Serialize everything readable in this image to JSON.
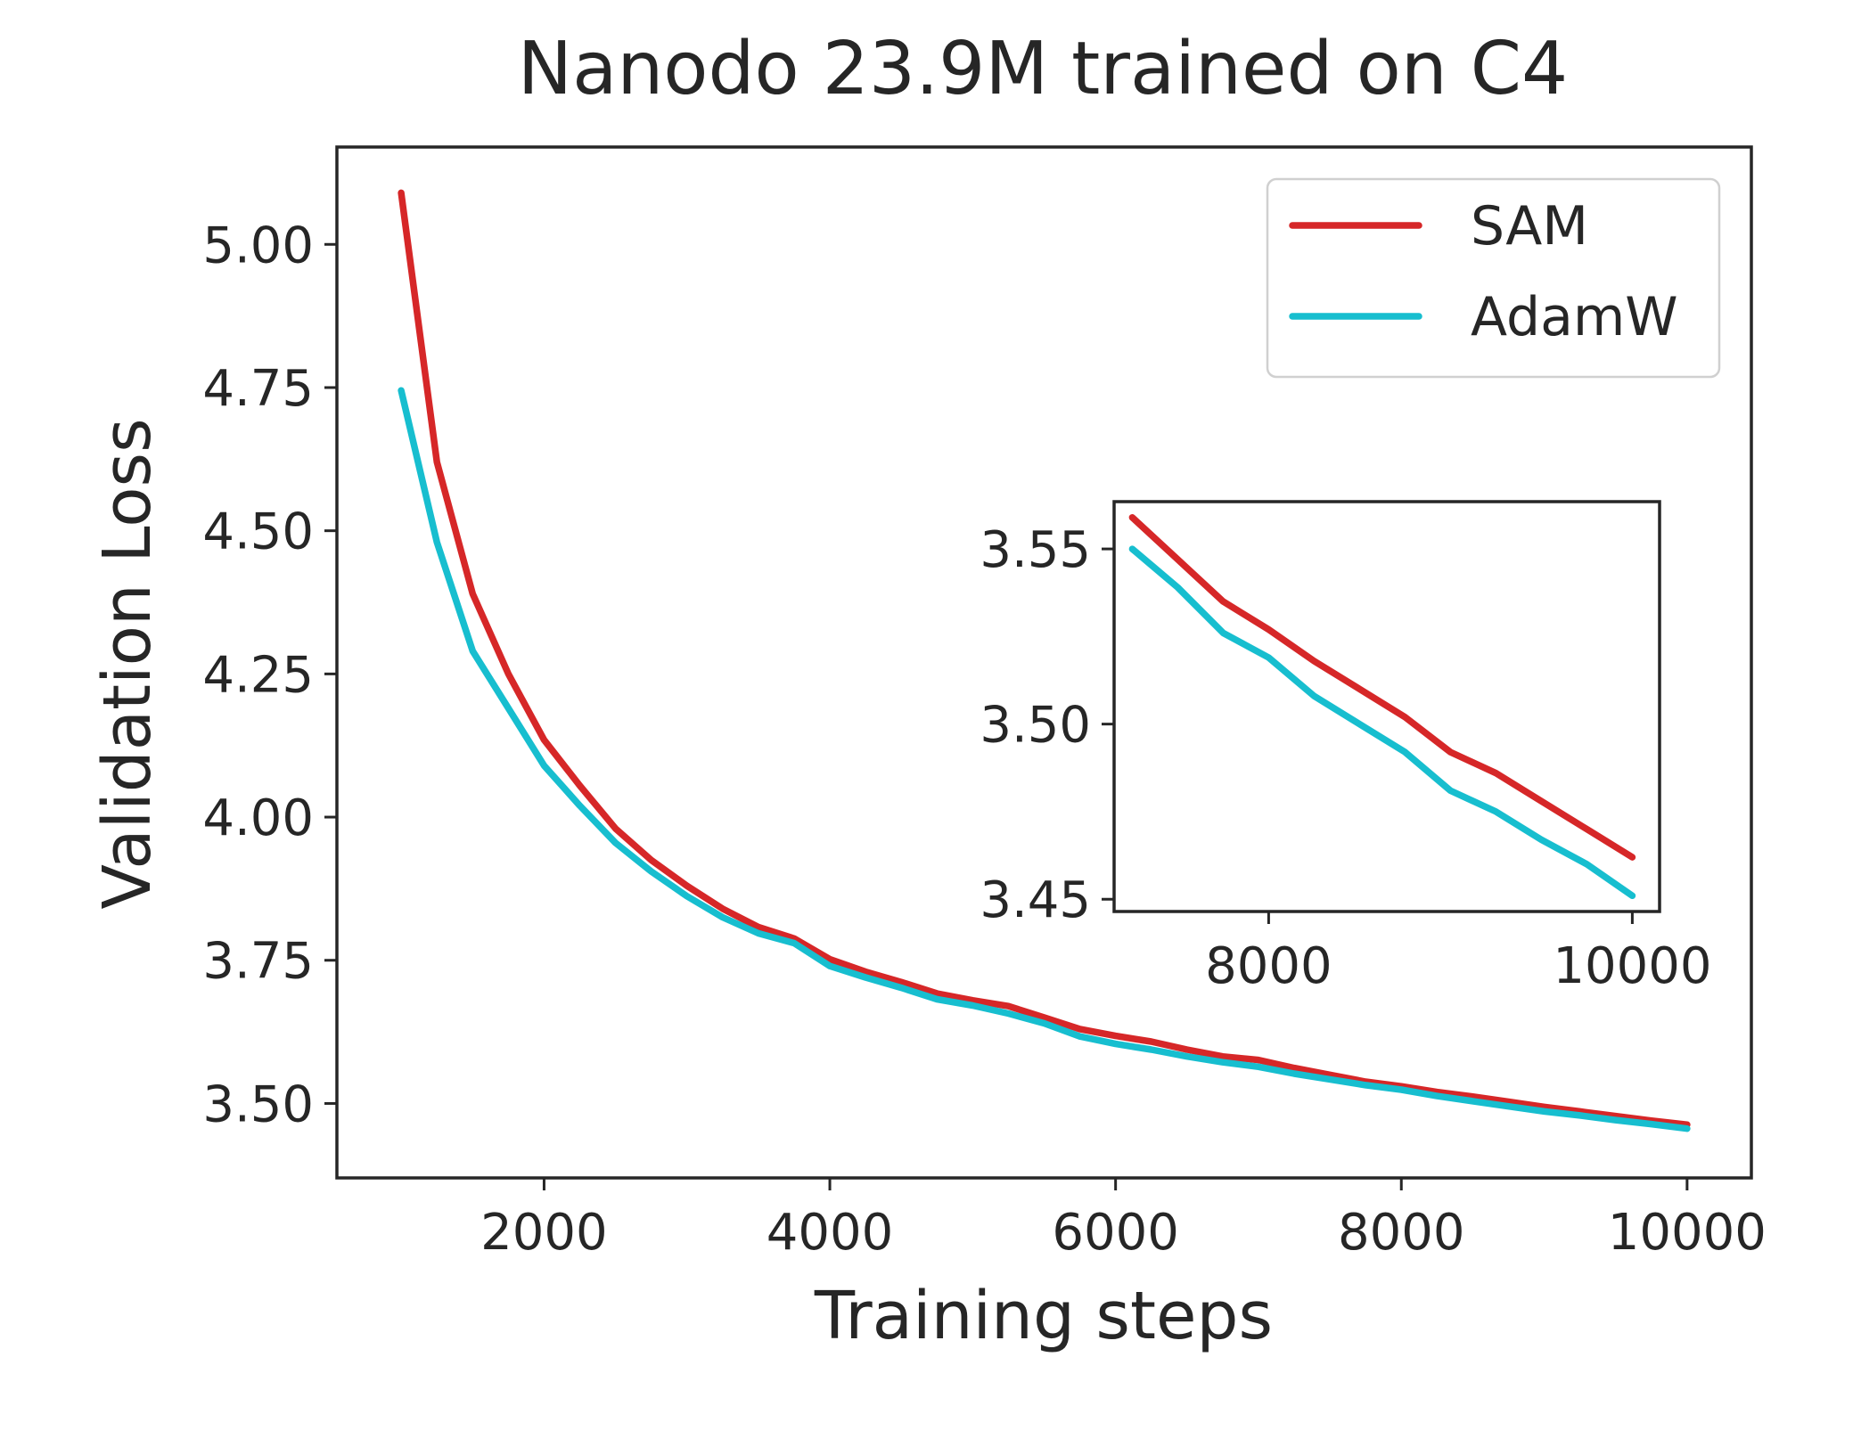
{
  "chart_data": {
    "type": "line",
    "title": "Nanodo 23.9M trained on C4",
    "xlabel": "Training steps",
    "ylabel": "Validation Loss",
    "xlim": [
      550,
      10450
    ],
    "ylim": [
      3.37,
      5.17
    ],
    "xticks": [
      2000,
      4000,
      6000,
      8000,
      10000
    ],
    "xtick_labels": [
      "2000",
      "4000",
      "6000",
      "8000",
      "10000"
    ],
    "yticks": [
      3.5,
      3.75,
      4.0,
      4.25,
      4.5,
      4.75,
      5.0
    ],
    "ytick_labels": [
      "3.50",
      "3.75",
      "4.00",
      "4.25",
      "4.50",
      "4.75",
      "5.00"
    ],
    "x": [
      1000,
      1250,
      1500,
      1750,
      2000,
      2250,
      2500,
      2750,
      3000,
      3250,
      3500,
      3750,
      4000,
      4250,
      4500,
      4750,
      5000,
      5250,
      5500,
      5750,
      6000,
      6250,
      6500,
      6750,
      7000,
      7250,
      7500,
      7750,
      8000,
      8250,
      8500,
      8750,
      9000,
      9250,
      9500,
      9750,
      10000
    ],
    "series": [
      {
        "name": "SAM",
        "color": "#d62728",
        "values": [
          5.09,
          4.62,
          4.39,
          4.25,
          4.135,
          4.055,
          3.98,
          3.925,
          3.88,
          3.84,
          3.808,
          3.788,
          3.752,
          3.73,
          3.712,
          3.692,
          3.68,
          3.67,
          3.65,
          3.63,
          3.618,
          3.608,
          3.594,
          3.582,
          3.576,
          3.562,
          3.55,
          3.538,
          3.53,
          3.52,
          3.512,
          3.503,
          3.494,
          3.486,
          3.478,
          3.47,
          3.463
        ]
      },
      {
        "name": "AdamW",
        "color": "#17becf",
        "values": [
          4.745,
          4.48,
          4.29,
          4.19,
          4.09,
          4.02,
          3.955,
          3.905,
          3.862,
          3.825,
          3.797,
          3.78,
          3.74,
          3.72,
          3.702,
          3.682,
          3.671,
          3.657,
          3.64,
          3.617,
          3.604,
          3.594,
          3.582,
          3.572,
          3.564,
          3.552,
          3.542,
          3.532,
          3.524,
          3.513,
          3.504,
          3.495,
          3.486,
          3.479,
          3.471,
          3.464,
          3.456
        ]
      }
    ],
    "legend": {
      "position": "top-right",
      "entries": [
        "SAM",
        "AdamW"
      ]
    },
    "inset": {
      "xlim": [
        7150,
        10150
      ],
      "ylim": [
        3.4465,
        3.5635
      ],
      "xticks": [
        8000,
        10000
      ],
      "xtick_labels": [
        "8000",
        "10000"
      ],
      "yticks": [
        3.45,
        3.5,
        3.55
      ],
      "ytick_labels": [
        "3.45",
        "3.50",
        "3.55"
      ],
      "x": [
        7250,
        7500,
        7750,
        8000,
        8250,
        8500,
        8750,
        9000,
        9250,
        9500,
        9750,
        10000
      ],
      "series": [
        {
          "name": "SAM",
          "color": "#d62728",
          "values": [
            3.559,
            3.547,
            3.535,
            3.527,
            3.518,
            3.51,
            3.502,
            3.492,
            3.486,
            3.478,
            3.47,
            3.462
          ]
        },
        {
          "name": "AdamW",
          "color": "#17becf",
          "values": [
            3.55,
            3.539,
            3.526,
            3.519,
            3.508,
            3.5,
            3.492,
            3.481,
            3.475,
            3.467,
            3.46,
            3.451
          ]
        }
      ]
    }
  }
}
